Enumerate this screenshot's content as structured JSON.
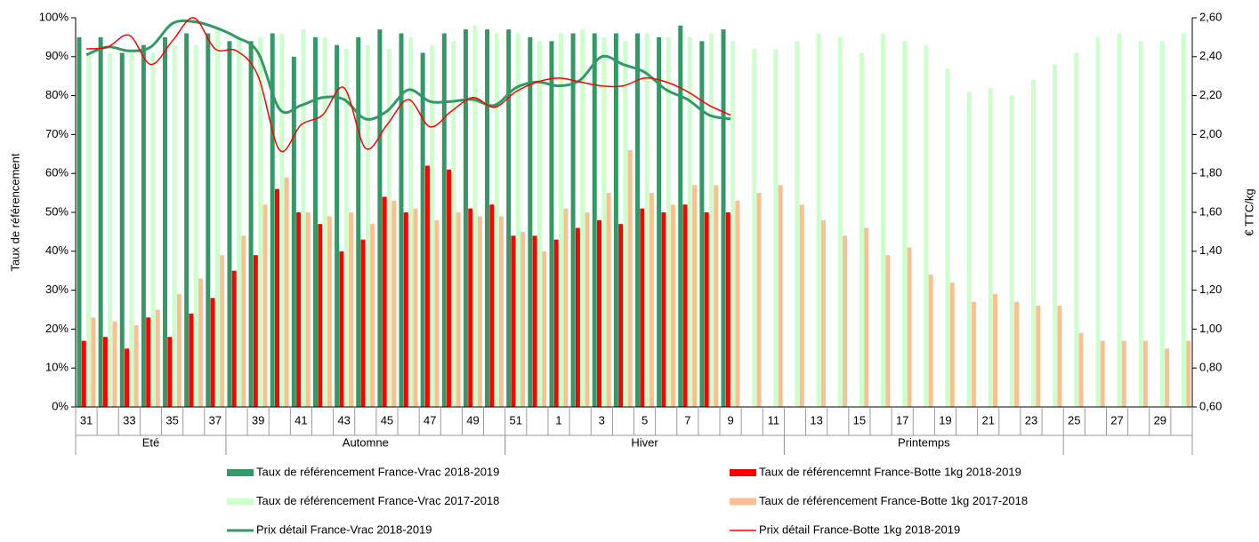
{
  "chart_data": {
    "type": "bar",
    "y_label": "Taux de référencement",
    "y2_label": "€ TTC/kg",
    "categories": [
      "31",
      null,
      "33",
      null,
      "35",
      null,
      "37",
      null,
      "39",
      null,
      "41",
      null,
      "43",
      null,
      "45",
      null,
      "47",
      null,
      "49",
      null,
      "51",
      null,
      "1",
      null,
      "3",
      null,
      "5",
      null,
      "7",
      null,
      "9",
      null,
      "11",
      null,
      "13",
      null,
      "15",
      null,
      "17",
      null,
      "19",
      null,
      "21",
      null,
      "23",
      null,
      "25",
      null,
      "27",
      null,
      "29",
      null
    ],
    "groups": [
      {
        "label": "Eté",
        "start": 0,
        "end": 6
      },
      {
        "label": "Automne",
        "start": 7,
        "end": 19
      },
      {
        "label": "Hiver",
        "start": 20,
        "end": 32
      },
      {
        "label": "Printemps",
        "start": 33,
        "end": 45
      }
    ],
    "ylim": [
      0,
      100
    ],
    "yticks": [
      {
        "value": 0,
        "label": "0%"
      },
      {
        "value": 10,
        "label": "10%"
      },
      {
        "value": 20,
        "label": "20%"
      },
      {
        "value": 30,
        "label": "30%"
      },
      {
        "value": 40,
        "label": "40%"
      },
      {
        "value": 50,
        "label": "50%"
      },
      {
        "value": 60,
        "label": "60%"
      },
      {
        "value": 70,
        "label": "70%"
      },
      {
        "value": 80,
        "label": "80%"
      },
      {
        "value": 90,
        "label": "90%"
      },
      {
        "value": 100,
        "label": "100%"
      }
    ],
    "y2lim": [
      0.6,
      2.6
    ],
    "y2ticks": [
      {
        "value": 0.6,
        "label": "0,60"
      },
      {
        "value": 0.8,
        "label": "0,80"
      },
      {
        "value": 1.0,
        "label": "1,00"
      },
      {
        "value": 1.2,
        "label": "1,20"
      },
      {
        "value": 1.4,
        "label": "1,40"
      },
      {
        "value": 1.6,
        "label": "1,60"
      },
      {
        "value": 1.8,
        "label": "1,80"
      },
      {
        "value": 2.0,
        "label": "2,00"
      },
      {
        "value": 2.2,
        "label": "2,20"
      },
      {
        "value": 2.4,
        "label": "2,40"
      },
      {
        "value": 2.6,
        "label": "2,60"
      }
    ],
    "series": [
      {
        "name": "Taux de référencement France-Vrac 2018-2019",
        "type": "bar",
        "color": "#339966",
        "values": [
          95,
          95,
          91,
          93,
          95,
          96,
          96,
          94,
          94,
          96,
          90,
          95,
          93,
          95,
          97,
          96,
          91,
          96,
          97,
          97,
          97,
          95,
          94,
          96,
          96,
          96,
          96,
          95,
          98,
          94,
          97,
          null,
          null,
          null,
          null,
          null,
          null,
          null,
          null,
          null,
          null,
          null,
          null,
          null,
          null,
          null,
          null,
          null,
          null,
          null,
          null,
          null
        ]
      },
      {
        "name": "Taux de référencemnt France-Botte 1kg 2018-2019",
        "type": "bar",
        "color": "#ff0000",
        "values": [
          17,
          18,
          15,
          23,
          18,
          24,
          28,
          35,
          39,
          56,
          50,
          47,
          40,
          43,
          54,
          50,
          62,
          61,
          51,
          52,
          44,
          44,
          43,
          46,
          48,
          47,
          51,
          50,
          52,
          50,
          50,
          null,
          null,
          null,
          null,
          null,
          null,
          null,
          null,
          null,
          null,
          null,
          null,
          null,
          null,
          null,
          null,
          null,
          null,
          null,
          null,
          null
        ]
      },
      {
        "name": "Taux de référencement France-Vrac 2017-2018",
        "type": "bar",
        "color": "#ccffcc",
        "values": [
          91,
          91,
          91,
          91,
          93,
          93,
          97,
          95,
          95,
          96,
          97,
          95,
          92,
          93,
          92,
          95,
          93,
          94,
          98,
          96,
          96,
          94,
          96,
          97,
          95,
          94,
          96,
          95,
          95,
          96,
          94,
          92,
          92,
          94,
          96,
          95,
          91,
          96,
          94,
          93,
          87,
          81,
          82,
          80,
          84,
          88,
          91,
          95,
          96,
          94,
          94,
          96
        ]
      },
      {
        "name": "Taux de référencement France-Botte 1kg 2017-2018",
        "type": "bar",
        "color": "#fac090",
        "values": [
          23,
          22,
          21,
          25,
          29,
          33,
          39,
          44,
          52,
          59,
          50,
          49,
          50,
          47,
          53,
          51,
          48,
          50,
          49,
          49,
          45,
          40,
          51,
          50,
          55,
          66,
          55,
          52,
          57,
          57,
          53,
          55,
          57,
          52,
          48,
          44,
          46,
          39,
          41,
          34,
          32,
          27,
          29,
          27,
          26,
          26,
          19,
          17,
          17,
          17,
          15,
          17
        ]
      },
      {
        "name": "Prix détail France-Vrac 2018-2019",
        "type": "line",
        "axis": "y2",
        "color": "#339966",
        "width": 3,
        "values": [
          2.41,
          2.45,
          2.43,
          2.45,
          2.57,
          2.58,
          2.55,
          2.5,
          2.42,
          2.13,
          2.15,
          2.19,
          2.18,
          2.08,
          2.12,
          2.23,
          2.17,
          2.17,
          2.18,
          2.15,
          2.24,
          2.27,
          2.25,
          2.28,
          2.4,
          2.36,
          2.32,
          2.23,
          2.18,
          2.1,
          2.08,
          null,
          null,
          null,
          null,
          null,
          null,
          null,
          null,
          null,
          null,
          null,
          null,
          null,
          null,
          null,
          null,
          null,
          null,
          null,
          null,
          null
        ]
      },
      {
        "name": "Prix détail France-Botte 1kg 2018-2019",
        "type": "line",
        "axis": "y2",
        "color": "#ff0000",
        "width": 1.5,
        "values": [
          2.44,
          2.45,
          2.51,
          2.36,
          2.48,
          2.6,
          2.44,
          2.43,
          2.3,
          1.92,
          2.05,
          2.1,
          2.24,
          1.93,
          2.05,
          2.18,
          2.04,
          2.12,
          2.19,
          2.14,
          2.22,
          2.27,
          2.29,
          2.27,
          2.25,
          2.25,
          2.29,
          2.27,
          2.22,
          2.15,
          2.1,
          null,
          null,
          null,
          null,
          null,
          null,
          null,
          null,
          null,
          null,
          null,
          null,
          null,
          null,
          null,
          null,
          null,
          null,
          null,
          null,
          null
        ]
      }
    ]
  }
}
